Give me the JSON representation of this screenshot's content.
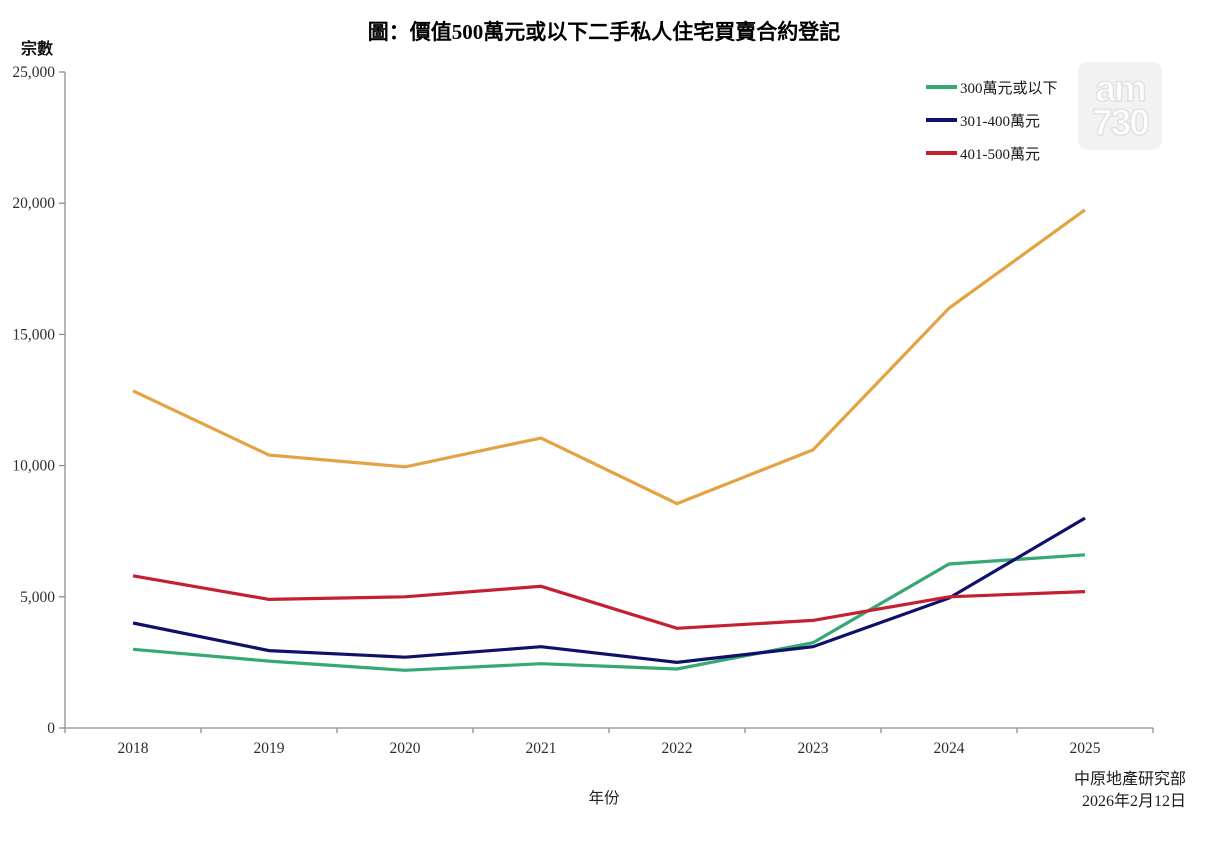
{
  "title": "圖：價值500萬元或以下二手私人住宅買賣合約登記",
  "watermark": {
    "line1": "am",
    "line2": "730"
  },
  "source": {
    "line1": "中原地產研究部",
    "line2": "2026年2月12日"
  },
  "chart_data": {
    "type": "line",
    "title": "圖：價值500萬元或以下二手私人住宅買賣合約登記",
    "xlabel": "年份",
    "ylabel": "宗數",
    "categories": [
      "2018",
      "2019",
      "2020",
      "2021",
      "2022",
      "2023",
      "2024",
      "2025"
    ],
    "ylim": [
      0,
      25000
    ],
    "yticks": [
      0,
      5000,
      10000,
      15000,
      20000,
      25000
    ],
    "ytick_labels": [
      "0",
      "5,000",
      "10,000",
      "15,000",
      "20,000",
      "25,000"
    ],
    "grid": false,
    "legend_position": "top-right",
    "axis_color": "#8f8f8f",
    "text_color": "#2e2e2e",
    "series": [
      {
        "key": "under-300",
        "name": "300萬元或以下",
        "color": "#36A873",
        "in_legend": true,
        "values": [
          3000,
          2550,
          2200,
          2450,
          2250,
          3250,
          6250,
          6600
        ]
      },
      {
        "key": "301-400",
        "name": "301-400萬元",
        "color": "#10106A",
        "in_legend": true,
        "values": [
          4000,
          2950,
          2700,
          3100,
          2500,
          3100,
          4950,
          8000
        ]
      },
      {
        "key": "401-500",
        "name": "401-500萬元",
        "color": "#C32031",
        "in_legend": true,
        "values": [
          5800,
          4900,
          5000,
          5400,
          3800,
          4100,
          5000,
          5200
        ]
      },
      {
        "key": "total",
        "name": "",
        "color": "#E3A343",
        "in_legend": false,
        "values": [
          12850,
          10400,
          9950,
          11050,
          8550,
          10600,
          16000,
          19750
        ]
      }
    ]
  }
}
